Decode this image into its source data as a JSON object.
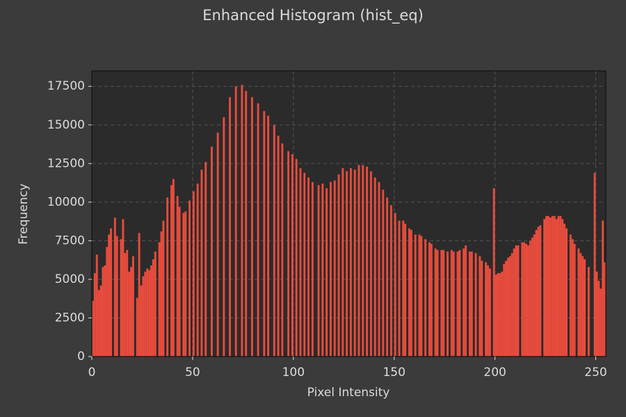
{
  "chart_data": {
    "type": "histogram",
    "title": "Enhanced Histogram (hist_eq)",
    "xlabel": "Pixel Intensity",
    "ylabel": "Frequency",
    "color": "#e84c3d",
    "grid": true,
    "xlim": [
      0,
      255
    ],
    "ylim": [
      0,
      18500
    ],
    "xticks": [
      0,
      50,
      100,
      150,
      200,
      250
    ],
    "yticks": [
      0,
      2500,
      5000,
      7500,
      10000,
      12500,
      15000,
      17500
    ],
    "bins": [
      0,
      1,
      2,
      3,
      4,
      5,
      6,
      7,
      8,
      9,
      10,
      11,
      12,
      13,
      14,
      15,
      16,
      17,
      18,
      19,
      20,
      21,
      22,
      23,
      24,
      25,
      26,
      27,
      28,
      29,
      30,
      31,
      32,
      33,
      34,
      35,
      36,
      37,
      38,
      39,
      40,
      41,
      42,
      43,
      44,
      45,
      46,
      47,
      48,
      49,
      50,
      51,
      52,
      53,
      54,
      55,
      56,
      57,
      58,
      59,
      60,
      61,
      62,
      63,
      64,
      65,
      66,
      67,
      68,
      69,
      70,
      71,
      72,
      73,
      74,
      75,
      76,
      77,
      78,
      79,
      80,
      81,
      82,
      83,
      84,
      85,
      86,
      87,
      88,
      89,
      90,
      91,
      92,
      93,
      94,
      95,
      96,
      97,
      98,
      99,
      100,
      101,
      102,
      103,
      104,
      105,
      106,
      107,
      108,
      109,
      110,
      111,
      112,
      113,
      114,
      115,
      116,
      117,
      118,
      119,
      120,
      121,
      122,
      123,
      124,
      125,
      126,
      127,
      128,
      129,
      130,
      131,
      132,
      133,
      134,
      135,
      136,
      137,
      138,
      139,
      140,
      141,
      142,
      143,
      144,
      145,
      146,
      147,
      148,
      149,
      150,
      151,
      152,
      153,
      154,
      155,
      156,
      157,
      158,
      159,
      160,
      161,
      162,
      163,
      164,
      165,
      166,
      167,
      168,
      169,
      170,
      171,
      172,
      173,
      174,
      175,
      176,
      177,
      178,
      179,
      180,
      181,
      182,
      183,
      184,
      185,
      186,
      187,
      188,
      189,
      190,
      191,
      192,
      193,
      194,
      195,
      196,
      197,
      198,
      199,
      200,
      201,
      202,
      203,
      204,
      205,
      206,
      207,
      208,
      209,
      210,
      211,
      212,
      213,
      214,
      215,
      216,
      217,
      218,
      219,
      220,
      221,
      222,
      223,
      224,
      225,
      226,
      227,
      228,
      229,
      230,
      231,
      232,
      233,
      234,
      235,
      236,
      237,
      238,
      239,
      240,
      241,
      242,
      243,
      244,
      245,
      246,
      247,
      248,
      249,
      250,
      251,
      252,
      253,
      254,
      255
    ],
    "counts": [
      3600,
      5400,
      6600,
      4300,
      4600,
      5800,
      5900,
      7100,
      7900,
      8300,
      0,
      9000,
      7800,
      0,
      7600,
      8900,
      6700,
      6900,
      5500,
      5800,
      6500,
      0,
      3800,
      8000,
      4600,
      5200,
      5500,
      5700,
      5600,
      5900,
      6300,
      6800,
      0,
      7400,
      8100,
      8800,
      0,
      10300,
      0,
      11100,
      11500,
      0,
      10400,
      9700,
      0,
      9300,
      9400,
      0,
      10100,
      0,
      10700,
      0,
      11200,
      0,
      12100,
      0,
      12600,
      0,
      0,
      13600,
      0,
      0,
      14500,
      0,
      0,
      15500,
      0,
      0,
      16800,
      0,
      0,
      17500,
      0,
      0,
      17600,
      0,
      17200,
      0,
      0,
      16800,
      0,
      0,
      16400,
      0,
      0,
      15900,
      0,
      15600,
      0,
      0,
      15000,
      0,
      14300,
      0,
      13800,
      0,
      0,
      13300,
      0,
      13100,
      0,
      12800,
      0,
      12200,
      0,
      11900,
      0,
      11600,
      0,
      11300,
      0,
      0,
      11100,
      0,
      11200,
      0,
      10900,
      0,
      11300,
      0,
      11400,
      0,
      11800,
      0,
      12200,
      0,
      12000,
      0,
      12200,
      0,
      12100,
      0,
      12400,
      0,
      12400,
      0,
      12300,
      0,
      12000,
      0,
      11600,
      0,
      11300,
      0,
      10800,
      0,
      10300,
      0,
      9800,
      0,
      9300,
      0,
      8800,
      0,
      8800,
      8600,
      0,
      8300,
      8200,
      0,
      7900,
      0,
      7900,
      7800,
      0,
      7600,
      0,
      7400,
      7300,
      0,
      7000,
      6900,
      0,
      6900,
      6900,
      0,
      6800,
      0,
      6900,
      6800,
      0,
      6800,
      6900,
      0,
      7000,
      7200,
      0,
      6800,
      6800,
      0,
      6700,
      0,
      6500,
      6200,
      0,
      6100,
      5900,
      5700,
      0,
      10900,
      5300,
      5400,
      5400,
      5500,
      6000,
      6200,
      6400,
      6500,
      6700,
      7000,
      7200,
      7200,
      0,
      7400,
      7400,
      7300,
      7200,
      7500,
      7700,
      7900,
      8200,
      8400,
      8500,
      0,
      8900,
      9100,
      9100,
      9000,
      9100,
      9100,
      8900,
      9100,
      9100,
      8900,
      8600,
      8300,
      0,
      7900,
      7600,
      7300,
      0,
      7000,
      6700,
      6500,
      6300,
      0,
      5800,
      0,
      0,
      11900,
      5500,
      4900,
      4400,
      8800,
      6100
    ]
  }
}
